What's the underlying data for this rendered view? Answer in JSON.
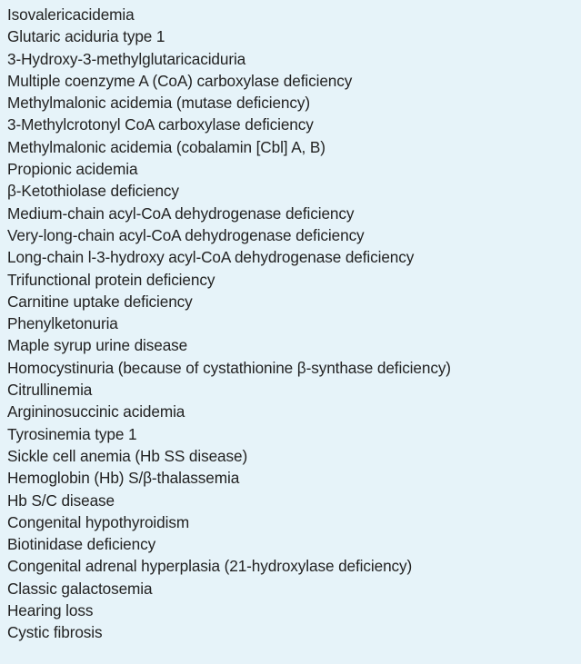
{
  "disorders": [
    "Isovalericacidemia",
    "Glutaric aciduria type 1",
    "3-Hydroxy-3-methylglutaricaciduria",
    "Multiple coenzyme A (CoA) carboxylase deficiency",
    "Methylmalonic acidemia (mutase deficiency)",
    "3-Methylcrotonyl CoA carboxylase deficiency",
    "Methylmalonic acidemia (cobalamin [Cbl] A, B)",
    "Propionic acidemia",
    "β-Ketothiolase deficiency",
    "Medium-chain acyl-CoA dehydrogenase deficiency",
    "Very-long-chain acyl-CoA dehydrogenase deficiency",
    "Long-chain l-3-hydroxy acyl-CoA dehydrogenase deficiency",
    "Trifunctional protein deficiency",
    "Carnitine uptake deficiency",
    "Phenylketonuria",
    "Maple syrup urine disease",
    "Homocystinuria (because of cystathionine β-synthase deficiency)",
    "Citrullinemia",
    "Argininosuccinic acidemia",
    "Tyrosinemia type 1",
    "Sickle cell anemia (Hb SS disease)",
    "Hemoglobin (Hb) S/β-thalassemia",
    "Hb S/C disease",
    "Congenital hypothyroidism",
    "Biotinidase deficiency",
    "Congenital adrenal hyperplasia (21-hydroxylase deficiency)",
    "Classic galactosemia",
    "Hearing loss",
    "Cystic fibrosis"
  ]
}
